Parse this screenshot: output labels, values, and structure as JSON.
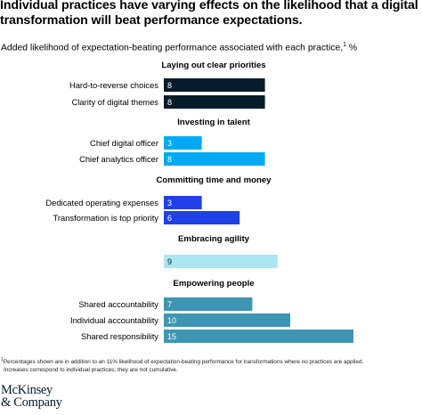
{
  "header": {
    "title_line1": "Individual practices have varying effects on the likelihood that a digital",
    "title_line2": "transformation will beat performance expectations.",
    "subtitle": "Added likelihood of expectation-beating performance associated with each practice,",
    "subtitle_sup": "1",
    "subtitle_unit": " %"
  },
  "footnote": {
    "sup": "1",
    "line1": "Percentages shown are in addition to an 11% likelihood of expectation-beating performance for transformations where no practices are applied.",
    "line2": "Increases correspond to individual practices; they are not cumulative."
  },
  "logo": {
    "line1": "McKinsey",
    "line2": "& Company"
  },
  "colors": {
    "dark_navy": "#051c2c",
    "bright_blue": "#00a9f4",
    "royal_blue": "#1f40e6",
    "light_cyan": "#aae6f0",
    "teal": "#3c96b4",
    "group_label_background": "#ffffff"
  },
  "chart_data": {
    "type": "bar",
    "orientation": "horizontal",
    "unit": "%",
    "xlim": [
      0,
      15
    ],
    "grid": false,
    "legend": "none",
    "groups": [
      {
        "name": "Laying out clear priorities",
        "color": "#051c2c",
        "bars": [
          {
            "label": "Hard-to-reverse choices",
            "value": 8
          },
          {
            "label": "Clarity of digital themes",
            "value": 8
          }
        ]
      },
      {
        "name": "Investing in talent",
        "color": "#00a9f4",
        "bars": [
          {
            "label": "Chief digital officer",
            "value": 3
          },
          {
            "label": "Chief analytics officer",
            "value": 8
          }
        ]
      },
      {
        "name": "Committing time and money",
        "color": "#1f40e6",
        "bars": [
          {
            "label": "Dedicated operating expenses",
            "value": 3
          },
          {
            "label": "Transformation is top priority",
            "value": 6
          }
        ]
      },
      {
        "name": "Embracing agility",
        "color": "#aae6f0",
        "bars": [
          {
            "label": "",
            "value": 9
          }
        ]
      },
      {
        "name": "Empowering people",
        "color": "#3c96b4",
        "bars": [
          {
            "label": "Shared accountability",
            "value": 7
          },
          {
            "label": "Individual accountability",
            "value": 10
          },
          {
            "label": "Shared responsibility",
            "value": 15
          }
        ]
      }
    ]
  }
}
